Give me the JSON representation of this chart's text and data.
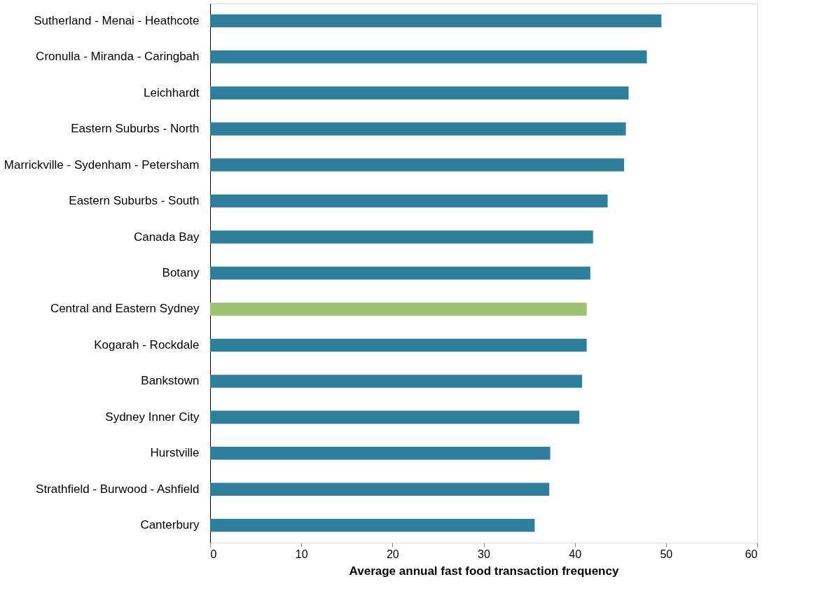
{
  "chart_data": {
    "type": "bar",
    "orientation": "horizontal",
    "xlabel": "Average annual fast food transaction frequency",
    "categories": [
      "Sutherland - Menai - Heathcote",
      "Cronulla - Miranda - Caringbah",
      "Leichhardt",
      "Eastern Suburbs - North",
      "Marrickville - Sydenham - Petersham",
      "Eastern Suburbs - South",
      "Canada Bay",
      "Botany",
      "Central and Eastern Sydney",
      "Kogarah - Rockdale",
      "Bankstown",
      "Sydney Inner City",
      "Hurstville",
      "Strathfield - Burwood - Ashfield",
      "Canterbury"
    ],
    "values": [
      49.5,
      47.9,
      45.9,
      45.6,
      45.4,
      43.6,
      42.0,
      41.7,
      41.3,
      41.3,
      40.8,
      40.5,
      37.3,
      37.2,
      35.6
    ],
    "colors": [
      "#2e7f99",
      "#2e7f99",
      "#2e7f99",
      "#2e7f99",
      "#2e7f99",
      "#2e7f99",
      "#2e7f99",
      "#2e7f99",
      "#9bc372",
      "#2e7f99",
      "#2e7f99",
      "#2e7f99",
      "#2e7f99",
      "#2e7f99",
      "#2e7f99"
    ],
    "xlim": [
      0,
      60
    ],
    "xticks": [
      0,
      10,
      20,
      30,
      40,
      50,
      60
    ],
    "grid": false,
    "legend": false
  }
}
